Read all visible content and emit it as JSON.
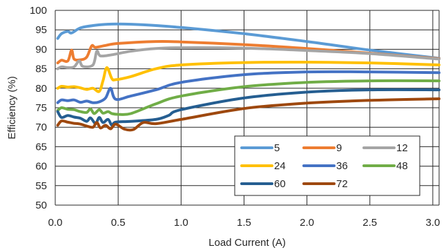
{
  "chart_data": {
    "type": "line",
    "xlabel": "Load Current (A)",
    "ylabel": "Efficiency (%)",
    "xlim": [
      0,
      3.05
    ],
    "ylim": [
      50,
      100
    ],
    "xticks": [
      "0.0",
      "0.5",
      "1.0",
      "1.5",
      "2.0",
      "2.5",
      "3.0"
    ],
    "xtick_values": [
      0,
      0.5,
      1.0,
      1.5,
      2.0,
      2.5,
      3.0
    ],
    "yticks": [
      "50",
      "55",
      "60",
      "65",
      "70",
      "75",
      "80",
      "85",
      "90",
      "95",
      "100"
    ],
    "ytick_values": [
      50,
      55,
      60,
      65,
      70,
      75,
      80,
      85,
      90,
      95,
      100
    ],
    "grid": true,
    "legend_position": "lower-right",
    "series": [
      {
        "name": "5",
        "color": "#5B9BD5",
        "x": [
          0.02,
          0.05,
          0.1,
          0.13,
          0.2,
          0.3,
          0.4,
          0.5,
          0.7,
          1.0,
          1.5,
          2.0,
          2.5,
          3.05
        ],
        "y": [
          92.8,
          94.0,
          94.6,
          94.2,
          95.5,
          96.1,
          96.4,
          96.5,
          96.3,
          95.6,
          94.0,
          92.0,
          89.8,
          87.7
        ]
      },
      {
        "name": "9",
        "color": "#ED7D31",
        "x": [
          0.02,
          0.05,
          0.1,
          0.13,
          0.15,
          0.2,
          0.25,
          0.29,
          0.32,
          0.4,
          0.5,
          0.8,
          1.0,
          1.5,
          2.0,
          2.5,
          3.05
        ],
        "y": [
          86.5,
          87.2,
          87.0,
          89.8,
          87.5,
          87.3,
          88.0,
          90.9,
          90.5,
          91.0,
          91.5,
          92.0,
          91.9,
          91.2,
          90.2,
          89.0,
          87.6
        ]
      },
      {
        "name": "12",
        "color": "#A5A5A5",
        "x": [
          0.02,
          0.05,
          0.1,
          0.15,
          0.19,
          0.22,
          0.3,
          0.33,
          0.36,
          0.45,
          0.6,
          0.8,
          1.0,
          1.5,
          2.0,
          2.5,
          3.05
        ],
        "y": [
          85.0,
          85.5,
          85.3,
          85.5,
          87.0,
          85.6,
          86.0,
          89.5,
          88.3,
          88.6,
          89.5,
          90.2,
          90.4,
          90.3,
          89.7,
          88.9,
          87.5
        ]
      },
      {
        "name": "24",
        "color": "#FFC000",
        "x": [
          0.02,
          0.05,
          0.1,
          0.15,
          0.2,
          0.25,
          0.3,
          0.35,
          0.38,
          0.41,
          0.45,
          0.48,
          0.6,
          0.8,
          1.0,
          1.5,
          2.0,
          2.5,
          3.05
        ],
        "y": [
          80.0,
          80.5,
          80.3,
          80.4,
          80.1,
          79.7,
          80.0,
          79.2,
          82.0,
          85.3,
          82.5,
          82.2,
          83.0,
          85.0,
          86.0,
          86.6,
          86.7,
          86.5,
          86.0
        ]
      },
      {
        "name": "36",
        "color": "#4472C4",
        "x": [
          0.02,
          0.05,
          0.1,
          0.15,
          0.2,
          0.25,
          0.3,
          0.35,
          0.4,
          0.44,
          0.48,
          0.6,
          0.8,
          1.0,
          1.5,
          2.0,
          2.5,
          3.05
        ],
        "y": [
          76.3,
          77.0,
          76.8,
          77.0,
          76.4,
          76.7,
          76.3,
          76.5,
          77.5,
          80.0,
          77.2,
          78.0,
          79.6,
          81.5,
          83.5,
          84.2,
          84.2,
          84.0
        ]
      },
      {
        "name": "48",
        "color": "#70AD47",
        "x": [
          0.02,
          0.05,
          0.1,
          0.15,
          0.2,
          0.25,
          0.28,
          0.31,
          0.35,
          0.38,
          0.42,
          0.45,
          0.5,
          0.6,
          0.8,
          1.0,
          1.5,
          2.0,
          2.5,
          3.05
        ],
        "y": [
          74.3,
          75.0,
          74.6,
          74.5,
          74.0,
          73.8,
          74.7,
          73.5,
          74.5,
          73.6,
          74.0,
          73.5,
          73.3,
          73.5,
          76.0,
          78.0,
          80.4,
          81.5,
          81.9,
          81.9
        ]
      },
      {
        "name": "60",
        "color": "#255E91",
        "x": [
          0.02,
          0.05,
          0.1,
          0.15,
          0.2,
          0.25,
          0.28,
          0.32,
          0.35,
          0.38,
          0.42,
          0.45,
          0.48,
          0.6,
          0.8,
          0.9,
          1.0,
          1.5,
          2.0,
          2.5,
          3.05
        ],
        "y": [
          74.0,
          72.5,
          73.0,
          72.6,
          72.3,
          71.5,
          72.4,
          71.0,
          72.5,
          71.2,
          72.0,
          70.5,
          71.3,
          71.5,
          72.0,
          73.0,
          74.5,
          77.5,
          79.0,
          79.6,
          79.6
        ]
      },
      {
        "name": "72",
        "color": "#9E480E",
        "x": [
          0.02,
          0.05,
          0.1,
          0.15,
          0.2,
          0.25,
          0.3,
          0.33,
          0.36,
          0.4,
          0.44,
          0.48,
          0.55,
          0.62,
          0.7,
          0.8,
          1.0,
          1.5,
          2.0,
          2.5,
          3.05
        ],
        "y": [
          70.5,
          71.6,
          71.3,
          71.0,
          70.8,
          70.3,
          70.0,
          71.2,
          69.8,
          70.5,
          69.6,
          70.8,
          69.5,
          69.4,
          71.2,
          70.9,
          72.0,
          74.8,
          76.2,
          76.9,
          77.3
        ]
      }
    ]
  }
}
